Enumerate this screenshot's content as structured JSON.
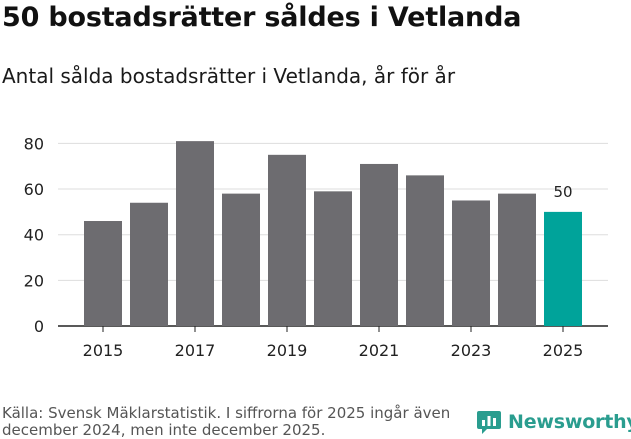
{
  "header": {
    "title": "50 bostadsrätter såldes i Vetlanda",
    "subtitle": "Antal sålda bostadsrätter i Vetlanda, år för år"
  },
  "footer": {
    "source": "Källa: Svensk Mäklarstatistik. I siffrorna för 2025 ingår även december 2024, men inte december 2025.",
    "brand": "Newsworthy"
  },
  "chart_data": {
    "type": "bar",
    "title": "50 bostadsrätter såldes i Vetlanda",
    "subtitle": "Antal sålda bostadsrätter i Vetlanda, år för år",
    "xlabel": "",
    "ylabel": "",
    "categories": [
      "2015",
      "2016",
      "2017",
      "2018",
      "2019",
      "2020",
      "2021",
      "2022",
      "2023",
      "2024",
      "2025"
    ],
    "values": [
      46,
      54,
      81,
      58,
      75,
      59,
      71,
      66,
      55,
      58,
      50
    ],
    "x_tick_labels": [
      "2015",
      "2017",
      "2019",
      "2021",
      "2023",
      "2025"
    ],
    "y_ticks": [
      0,
      20,
      40,
      60,
      80
    ],
    "ylim": [
      0,
      85
    ],
    "grid": true,
    "bar_color": "#6d6c70",
    "highlight_color": "#00a39a",
    "highlight_index": 10,
    "data_labels": [
      {
        "index": 10,
        "text": "50"
      }
    ]
  }
}
